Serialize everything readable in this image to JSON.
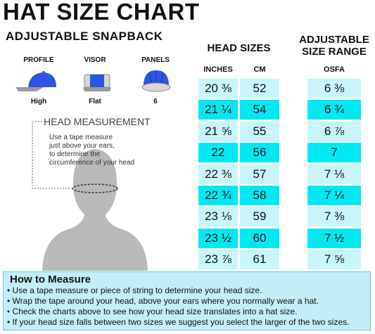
{
  "title": "HAT SIZE CHART",
  "subtitle": "ADJUSTABLE SNAPBACK",
  "features": [
    {
      "label": "PROFILE",
      "value": "High"
    },
    {
      "label": "VISOR",
      "value": "Flat"
    },
    {
      "label": "PANELS",
      "value": "6"
    }
  ],
  "measurement": {
    "heading": "HEAD MEASUREMENT",
    "lines": [
      "Use a tape measure",
      "just above your ears,",
      "to determine the",
      "circumference of your head"
    ]
  },
  "head_sizes": {
    "title": "HEAD SIZES",
    "columns": [
      "INCHES",
      "CM"
    ],
    "rows": [
      [
        "20 ⅜",
        "52"
      ],
      [
        "21 ¼",
        "54"
      ],
      [
        "21 ⅝",
        "55"
      ],
      [
        "22",
        "56"
      ],
      [
        "22 ⅜",
        "57"
      ],
      [
        "22 ¾",
        "58"
      ],
      [
        "23 ⅛",
        "59"
      ],
      [
        "23 ½",
        "60"
      ],
      [
        "23 ⅞",
        "61"
      ]
    ]
  },
  "size_range": {
    "title": [
      "ADJUSTABLE",
      "SIZE RANGE"
    ],
    "column": "OSFA",
    "rows": [
      "6 ⅜",
      "6 ¾",
      "6 ⅞",
      "7",
      "7 ⅛",
      "7 ¼",
      "7 ⅜",
      "7 ½",
      "7 ⅝"
    ]
  },
  "how_to": {
    "title": "How to Measure",
    "items": [
      "• Use a tape measure or piece of string to determine your head size.",
      "• Wrap the tape around your head, above your ears where you normally wear a hat.",
      "• Check the charts above to see how your head size translates into a hat size.",
      "• If your head size falls between two sizes we suggest you select the larger of the two sizes."
    ]
  }
}
